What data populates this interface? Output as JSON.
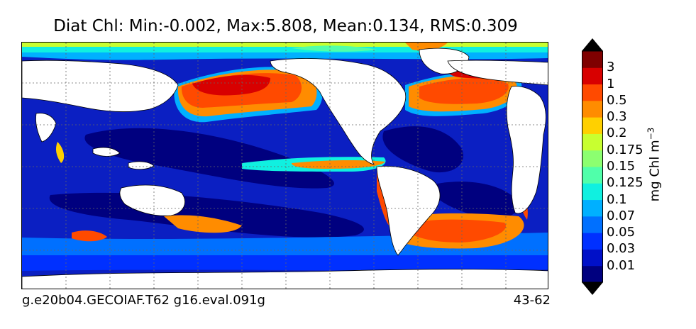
{
  "title": "Diat Chl: Min:-0.002, Max:5.808, Mean:0.134, RMS:0.309",
  "footer": {
    "left": "g.e20b04.GECOIAF.T62 g16.eval.091g",
    "right": "43-62"
  },
  "colorbar": {
    "units_label": "mg Chl m",
    "units_exponent": "−3",
    "tick_labels": [
      "0.01",
      "0.03",
      "0.05",
      "0.07",
      "0.1",
      "0.125",
      "0.15",
      "0.175",
      "0.2",
      "0.3",
      "0.5",
      "1",
      "3"
    ],
    "colors": [
      "#00007f",
      "#0010c8",
      "#0030ff",
      "#0070ff",
      "#00b0ff",
      "#10f0e0",
      "#50ffaa",
      "#8cff70",
      "#c8ff30",
      "#ffd000",
      "#ff8c00",
      "#ff4a00",
      "#d80000",
      "#7f0000"
    ]
  },
  "map": {
    "land_color": "#ffffff",
    "ocean_background": "#0b1fc2",
    "gridlines": true
  }
}
